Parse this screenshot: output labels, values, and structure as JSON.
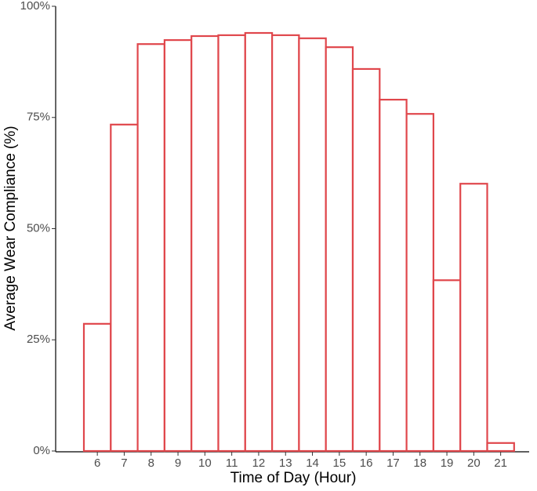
{
  "chart_data": {
    "type": "bar",
    "x_label": "Time of Day (Hour)",
    "y_label": "Average Wear Compliance (%)",
    "categories": [
      "6",
      "7",
      "8",
      "9",
      "10",
      "11",
      "12",
      "13",
      "14",
      "15",
      "16",
      "17",
      "18",
      "19",
      "20",
      "21"
    ],
    "values": [
      28.6,
      73.4,
      91.5,
      92.4,
      93.3,
      93.5,
      94.0,
      93.5,
      92.8,
      90.8,
      85.9,
      79.0,
      75.8,
      38.4,
      60.1,
      1.8
    ],
    "color": "#e0474c",
    "ylim": [
      0,
      100
    ],
    "yticks": [
      {
        "value": 0,
        "label": "0%"
      },
      {
        "value": 25,
        "label": "25%"
      },
      {
        "value": 50,
        "label": "50%"
      },
      {
        "value": 75,
        "label": "75%"
      },
      {
        "value": 100,
        "label": "100%"
      }
    ],
    "grid": false
  }
}
